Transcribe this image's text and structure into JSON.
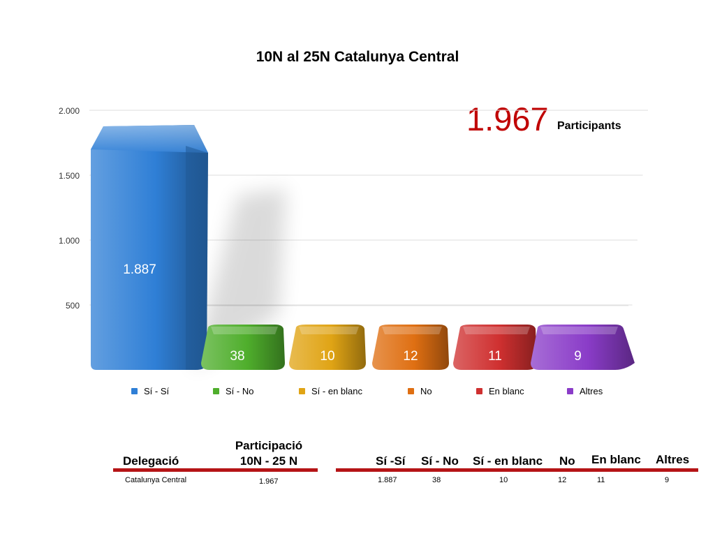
{
  "chart_data": {
    "type": "bar",
    "title": "10N al 25N Catalunya Central",
    "categories": [
      "Sí - Sí",
      "Sí - No",
      "Sí - en blanc",
      "No",
      "En blanc",
      "Altres"
    ],
    "values": [
      1887,
      38,
      10,
      12,
      11,
      9
    ],
    "value_labels": [
      "1.887",
      "38",
      "10",
      "12",
      "11",
      "9"
    ],
    "colors": [
      "#2f7fd6",
      "#4fae2c",
      "#e0a415",
      "#df6f12",
      "#cf3030",
      "#8a3cc8"
    ],
    "ylim": [
      0,
      2000
    ],
    "yticks": [
      500,
      1000,
      1500,
      2000
    ],
    "ytick_labels": [
      "500",
      "1.000",
      "1.500",
      "2.000"
    ],
    "grid": true,
    "legend": "bottom",
    "total": "1.967",
    "total_label": "Participants"
  },
  "table": {
    "left_headers": [
      "Delegació",
      "Participació\n10N - 25 N"
    ],
    "left_row": [
      "Catalunya Central",
      "1.967"
    ],
    "right_headers": [
      "Sí -Sí",
      "Sí - No",
      "Sí - en blanc",
      "No",
      "En blanc",
      "Altres"
    ],
    "right_row": [
      "1.887",
      "38",
      "10",
      "12",
      "11",
      "9"
    ]
  }
}
